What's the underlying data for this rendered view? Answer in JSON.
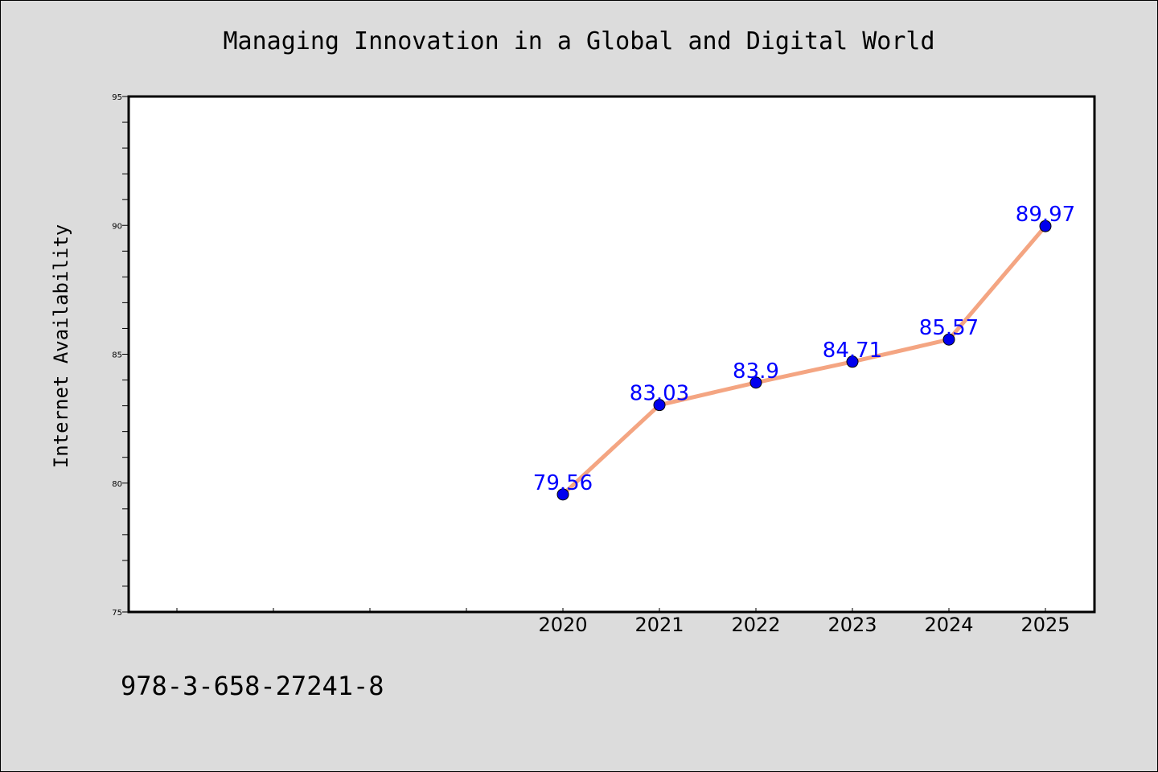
{
  "page": {
    "title": "Managing Innovation in a Global and Digital World",
    "footer_code": "978-3-658-27241-8"
  },
  "chart_data": {
    "type": "line",
    "title": "Managing Innovation in a Global and Digital World",
    "xlabel": "",
    "ylabel": "Internet Availability",
    "ylim": [
      75,
      95
    ],
    "yticks": [
      75,
      80,
      85,
      90,
      95
    ],
    "x": [
      "2020",
      "2021",
      "2022",
      "2023",
      "2024",
      "2025"
    ],
    "series": [
      {
        "values": [
          79.56,
          83.03,
          83.9,
          84.71,
          85.57,
          89.97
        ],
        "data_labels": [
          "79.56",
          "83.03",
          "83.9",
          "84.71",
          "85.57",
          "89.97"
        ]
      }
    ],
    "grid": false,
    "colors": {
      "line": "#f4a582",
      "marker": "#0000ee",
      "data_label": "#0000ff",
      "background": "#dcdcdc",
      "plot_background": "#ffffff"
    }
  }
}
